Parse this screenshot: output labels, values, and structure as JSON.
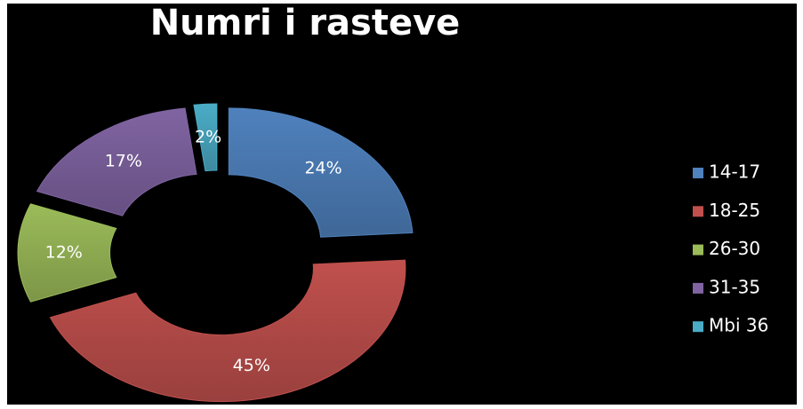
{
  "chart_data": {
    "type": "donut",
    "title": "Numri i rasteve",
    "categories": [
      "14-17",
      "18-25",
      "26-30",
      "31-35",
      "Mbi 36"
    ],
    "values": [
      24,
      45,
      12,
      17,
      2
    ],
    "value_labels": [
      "24%",
      "45%",
      "12%",
      "17%",
      "2%"
    ],
    "colors": [
      "#4f81bd",
      "#c0504d",
      "#9bbb59",
      "#8064a2",
      "#4bacc6"
    ],
    "legend": "right"
  }
}
